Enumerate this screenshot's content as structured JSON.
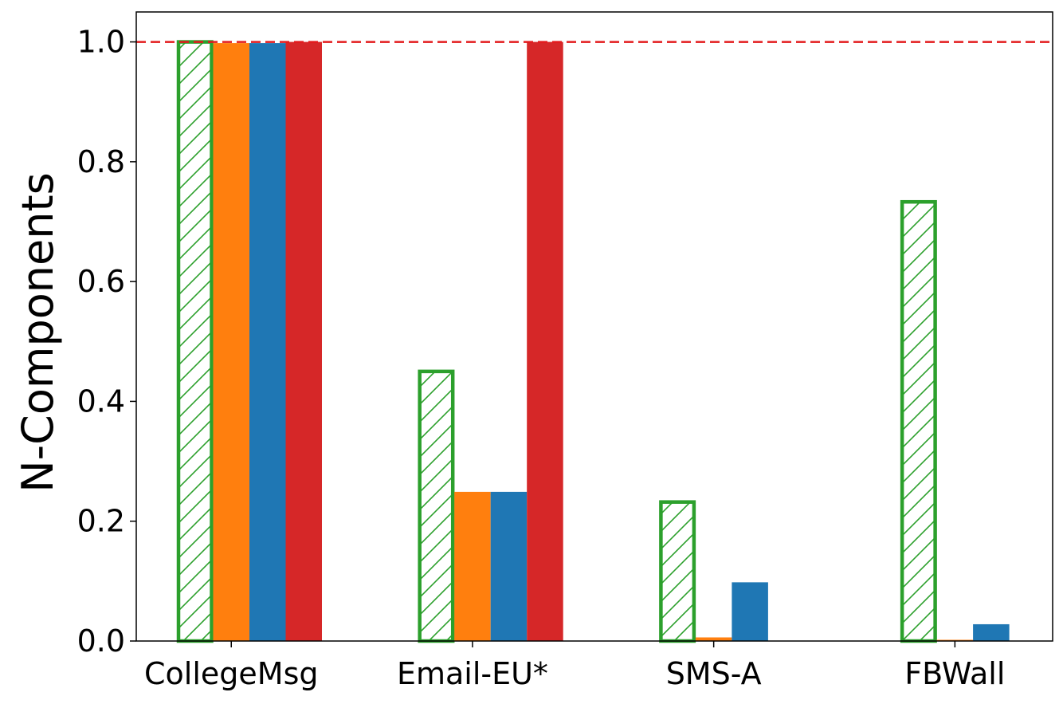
{
  "chart_data": {
    "type": "bar",
    "title": "",
    "xlabel": "",
    "ylabel": "N-Components",
    "ylim": [
      0,
      1.05
    ],
    "yticks": [
      "0.0",
      "0.2",
      "0.4",
      "0.6",
      "0.8",
      "1.0"
    ],
    "categories": [
      "CollegeMsg",
      "Email-EU*",
      "SMS-A",
      "FBWall"
    ],
    "reference_line": {
      "y": 1.0,
      "style": "dashed",
      "color": "#e31a1c"
    },
    "grid": false,
    "legend": "none",
    "series": [
      {
        "values": [
          1.0,
          0.45,
          0.232,
          0.733
        ],
        "color": "#2ca02c",
        "style": "hatched-outline"
      },
      {
        "values": [
          0.998,
          0.249,
          0.006,
          0.002
        ],
        "color": "#ff7f0e",
        "style": "solid"
      },
      {
        "values": [
          0.998,
          0.249,
          0.098,
          0.028
        ],
        "color": "#1f77b4",
        "style": "solid"
      },
      {
        "values": [
          1.0,
          1.0,
          0.0,
          0.0
        ],
        "color": "#d62728",
        "style": "solid"
      }
    ]
  }
}
